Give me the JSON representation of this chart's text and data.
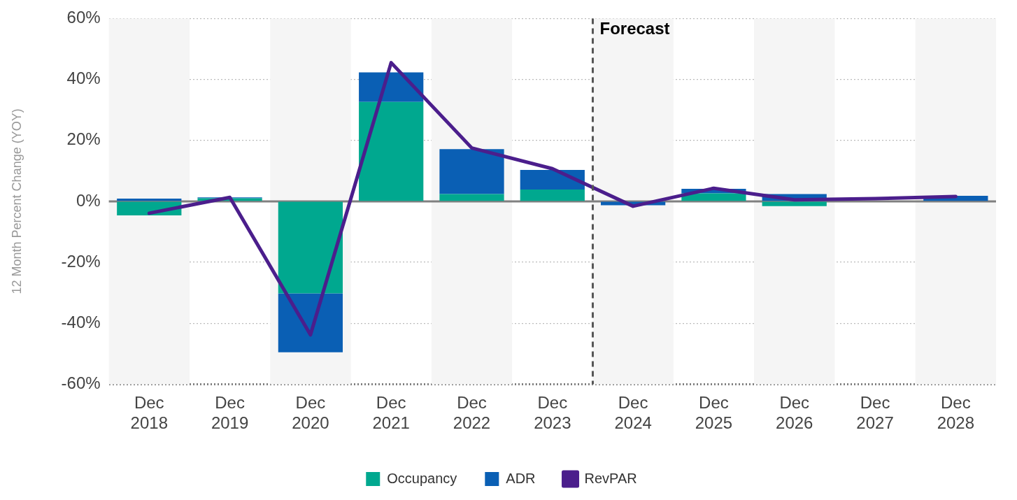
{
  "chart_data": {
    "type": "bar",
    "stacked": true,
    "ylabel": "12 Month Percent Change (YOY)",
    "x": [
      "2018-12",
      "2019-12",
      "2020-12",
      "2021-12",
      "2022-12",
      "2023-12",
      "2024-12",
      "2025-12",
      "2026-12",
      "2027-12",
      "2028-12"
    ],
    "xlim": [
      "2018-06",
      "2029-06"
    ],
    "xticks": [
      {
        "value": "2018-12",
        "label": "Dec\n2018"
      },
      {
        "value": "2019-12",
        "label": "Dec\n2019"
      },
      {
        "value": "2020-12",
        "label": "Dec\n2020"
      },
      {
        "value": "2021-12",
        "label": "Dec\n2021"
      },
      {
        "value": "2022-12",
        "label": "Dec\n2022"
      },
      {
        "value": "2023-12",
        "label": "Dec\n2023"
      },
      {
        "value": "2024-12",
        "label": "Dec\n2024"
      },
      {
        "value": "2025-12",
        "label": "Dec\n2025"
      },
      {
        "value": "2026-12",
        "label": "Dec\n2026"
      },
      {
        "value": "2027-12",
        "label": "Dec\n2027"
      },
      {
        "value": "2028-12",
        "label": "Dec\n2028"
      }
    ],
    "series": [
      {
        "name": "Occupancy",
        "color": "#00a88f",
        "values": [
          -4.6,
          1.0,
          -30.2,
          32.6,
          2.4,
          3.9,
          0,
          2.6,
          -1.6,
          null,
          0
        ]
      },
      {
        "name": "ADR",
        "color": "#0a5fb4",
        "values": [
          0.9,
          0.3,
          -19.3,
          9.7,
          14.7,
          6.4,
          -1.3,
          1.5,
          2.4,
          null,
          1.8
        ]
      },
      {
        "name": "RevPAR",
        "type": "line",
        "color": "#4b1e8c",
        "values": [
          -3.9,
          1.3,
          -43.8,
          45.5,
          17.5,
          10.7,
          -1.6,
          4.3,
          0.5,
          0.9,
          1.6
        ]
      }
    ],
    "ylim": [
      -60,
      60
    ],
    "yticks": [
      {
        "value": -60,
        "label": "-60%"
      },
      {
        "value": -40,
        "label": "-40%"
      },
      {
        "value": -20,
        "label": "-20%"
      },
      {
        "value": 0,
        "label": "0%"
      },
      {
        "value": 20,
        "label": "20%"
      },
      {
        "value": 40,
        "label": "40%"
      },
      {
        "value": 60,
        "label": "60%"
      }
    ],
    "grid": "y",
    "legend": "bottom",
    "marker": "none",
    "ref_lines": [
      {
        "axis": "x",
        "value": "2024-06",
        "label": "Forecast",
        "line_style": "dashed",
        "color": "#555555"
      }
    ],
    "bands": [
      {
        "axis": "x",
        "from": "2018-06",
        "to": "2019-06",
        "color": "#f5f5f5"
      },
      {
        "axis": "x",
        "from": "2020-06",
        "to": "2021-06",
        "color": "#f5f5f5"
      },
      {
        "axis": "x",
        "from": "2022-06",
        "to": "2023-06",
        "color": "#f5f5f5"
      },
      {
        "axis": "x",
        "from": "2024-06",
        "to": "2025-06",
        "color": "#f5f5f5"
      },
      {
        "axis": "x",
        "from": "2026-06",
        "to": "2027-06",
        "color": "#f5f5f5"
      },
      {
        "axis": "x",
        "from": "2028-06",
        "to": "2029-06",
        "color": "#f5f5f5"
      }
    ]
  }
}
